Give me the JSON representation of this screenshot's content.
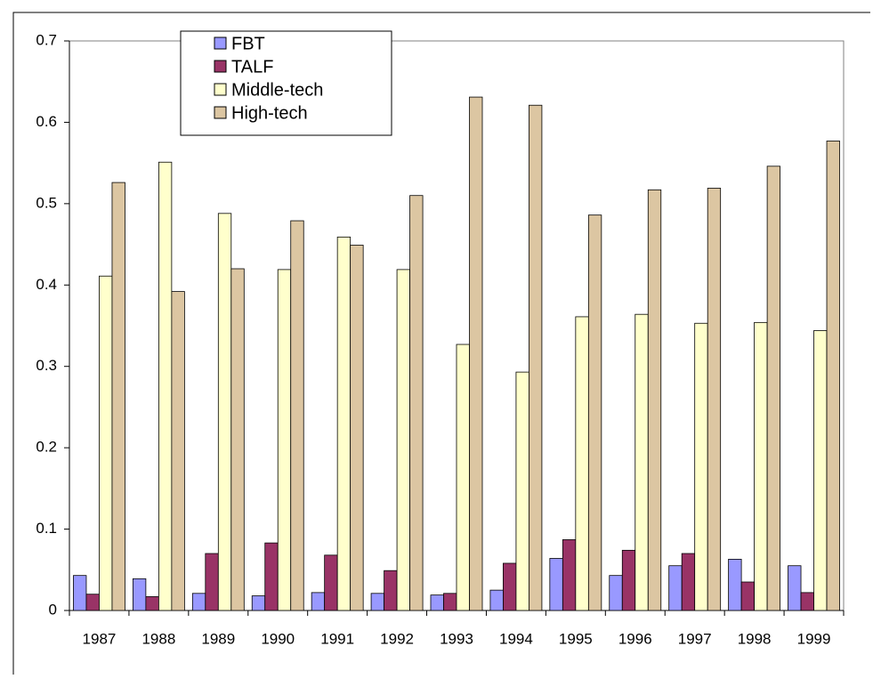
{
  "chart_data": {
    "type": "bar",
    "categories": [
      "1987",
      "1988",
      "1989",
      "1990",
      "1991",
      "1992",
      "1993",
      "1994",
      "1995",
      "1996",
      "1997",
      "1998",
      "1999"
    ],
    "series": [
      {
        "name": "FBT",
        "color": "#9999ff",
        "values": [
          0.043,
          0.039,
          0.021,
          0.018,
          0.022,
          0.021,
          0.019,
          0.025,
          0.064,
          0.043,
          0.055,
          0.063,
          0.055
        ]
      },
      {
        "name": "TALF",
        "color": "#993366",
        "values": [
          0.02,
          0.017,
          0.07,
          0.083,
          0.068,
          0.049,
          0.021,
          0.058,
          0.087,
          0.074,
          0.07,
          0.035,
          0.022
        ]
      },
      {
        "name": "Middle-tech",
        "color": "#ffffcc",
        "values": [
          0.411,
          0.551,
          0.488,
          0.419,
          0.459,
          0.419,
          0.327,
          0.293,
          0.361,
          0.364,
          0.353,
          0.354,
          0.344
        ]
      },
      {
        "name": "High-tech",
        "color": "#dcc6a2",
        "values": [
          0.526,
          0.392,
          0.42,
          0.479,
          0.449,
          0.51,
          0.631,
          0.621,
          0.486,
          0.517,
          0.519,
          0.546,
          0.577
        ]
      }
    ],
    "ylim": [
      0,
      0.7
    ],
    "yticks": [
      0,
      0.1,
      0.2,
      0.3,
      0.4,
      0.5,
      0.6,
      0.7
    ],
    "grid": false,
    "legend": "top-left"
  }
}
